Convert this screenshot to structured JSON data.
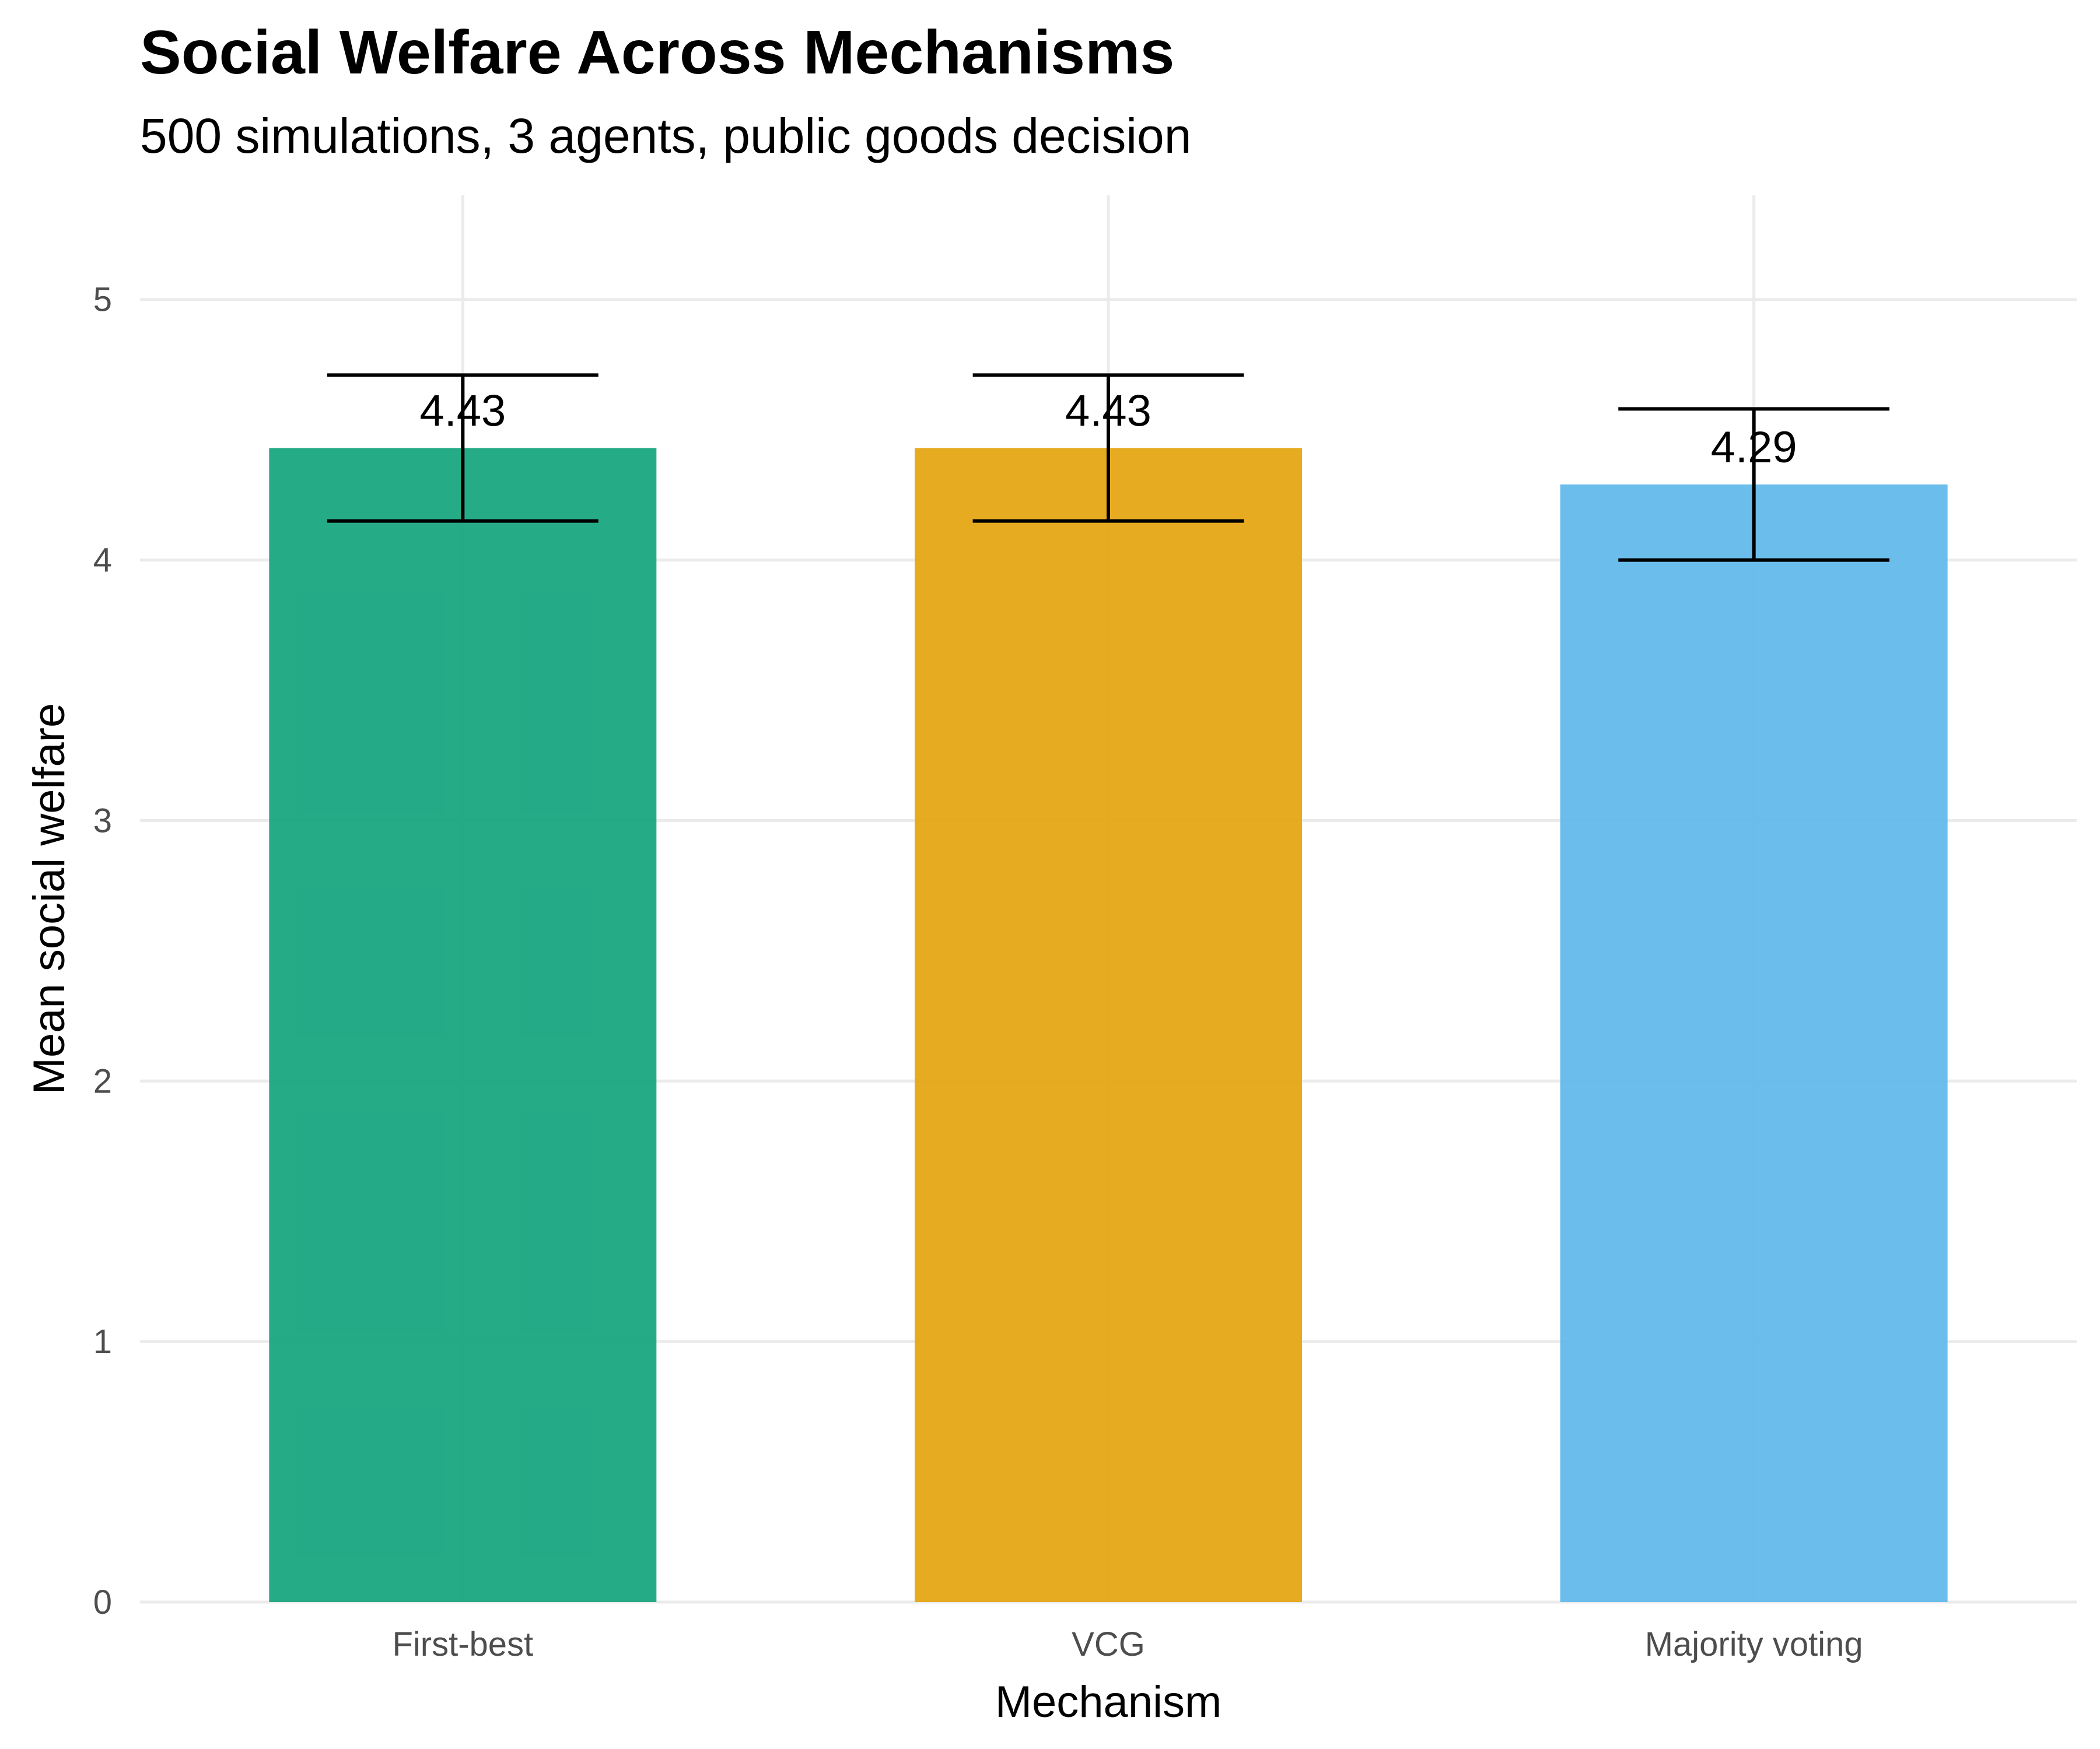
{
  "chart_data": {
    "type": "bar",
    "title": "Social Welfare Across Mechanisms",
    "subtitle": "500 simulations, 3 agents, public goods decision",
    "xlabel": "Mechanism",
    "ylabel": "Mean social welfare",
    "categories": [
      "First-best",
      "VCG",
      "Majority voting"
    ],
    "values": [
      4.43,
      4.43,
      4.29
    ],
    "value_labels": [
      "4.43",
      "4.43",
      "4.29"
    ],
    "error_low": [
      4.15,
      4.15,
      4.0
    ],
    "error_high": [
      4.71,
      4.71,
      4.58
    ],
    "colors": [
      "#1aa681",
      "#e6a716",
      "#63b9ea"
    ],
    "ylim": [
      0,
      5.4
    ],
    "yticks": [
      0,
      1,
      2,
      3,
      4,
      5
    ],
    "grid": true,
    "legend": "none"
  }
}
